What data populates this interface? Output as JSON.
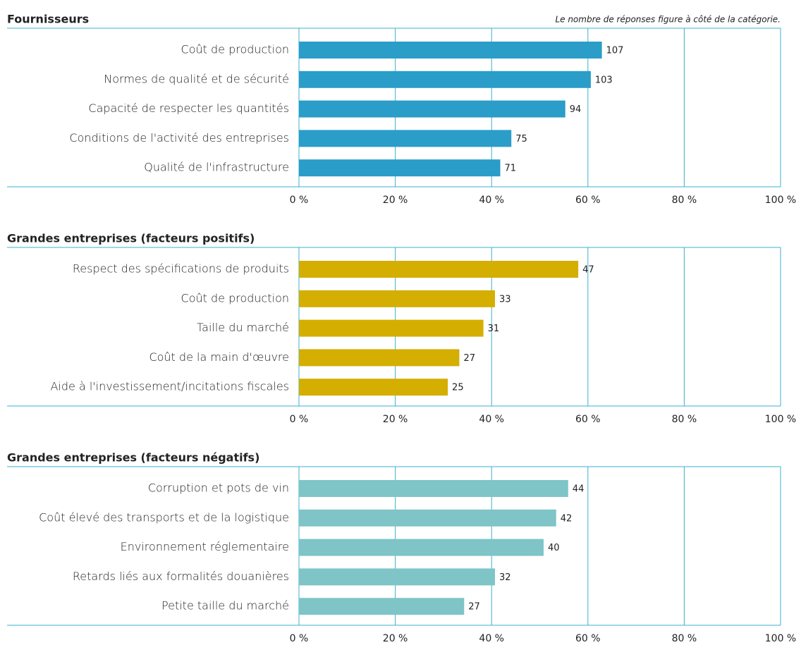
{
  "chart_data": [
    {
      "type": "barh",
      "title": "Fournisseurs",
      "annotation": "Le nombre de réponses figure à côté de la catégorie.",
      "categories": [
        "Coût de production",
        "Normes de qualité et de sécurité",
        "Capacité de respecter les quantités",
        "Conditions de l'activité des entreprises",
        "Qualité de l'infrastructure"
      ],
      "values": [
        62.9,
        60.6,
        55.3,
        44.1,
        41.8
      ],
      "responses": [
        107,
        103,
        94,
        75,
        71
      ],
      "color": "#2a9dc8",
      "xlim": [
        0,
        100
      ],
      "xticks": [
        {
          "value": 0,
          "label": "0 %"
        },
        {
          "value": 20,
          "label": "20 %"
        },
        {
          "value": 40,
          "label": "40 %"
        },
        {
          "value": 60,
          "label": "60 %"
        },
        {
          "value": 80,
          "label": "80 %"
        },
        {
          "value": 100,
          "label": "100 %"
        }
      ],
      "grid": true
    },
    {
      "type": "barh",
      "title": "Grandes entreprises (facteurs positifs)",
      "categories": [
        "Respect des spécifications de produits",
        "Coût de production",
        "Taille du marché",
        "Coût de la main d'œuvre",
        "Aide à l'investissement/incitations fiscales"
      ],
      "values": [
        58.0,
        40.7,
        38.3,
        33.3,
        30.9
      ],
      "responses": [
        47,
        33,
        31,
        27,
        25
      ],
      "color": "#d4ae00",
      "xlim": [
        0,
        100
      ],
      "xticks": [
        {
          "value": 0,
          "label": "0 %"
        },
        {
          "value": 20,
          "label": "20 %"
        },
        {
          "value": 40,
          "label": "40 %"
        },
        {
          "value": 60,
          "label": "60 %"
        },
        {
          "value": 80,
          "label": "80 %"
        },
        {
          "value": 100,
          "label": "100 %"
        }
      ],
      "grid": true
    },
    {
      "type": "barh",
      "title": "Grandes entreprises (facteurs négatifs)",
      "categories": [
        "Corruption et pots de vin",
        "Coût élevé des transports et de la logistique",
        "Environnement réglementaire",
        "Retards liés aux formalités douanières",
        "Petite taille du marché"
      ],
      "values": [
        55.9,
        53.4,
        50.8,
        40.7,
        34.3
      ],
      "responses": [
        44,
        42,
        40,
        32,
        27
      ],
      "color": "#7fc4c6",
      "xlim": [
        0,
        100
      ],
      "xticks": [
        {
          "value": 0,
          "label": "0 %"
        },
        {
          "value": 20,
          "label": "20 %"
        },
        {
          "value": 40,
          "label": "40 %"
        },
        {
          "value": 60,
          "label": "60 %"
        },
        {
          "value": 80,
          "label": "80 %"
        },
        {
          "value": 100,
          "label": "100 %"
        }
      ],
      "grid": true
    }
  ]
}
